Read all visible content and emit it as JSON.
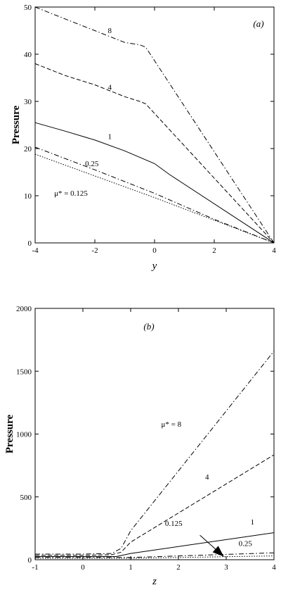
{
  "chart_data": [
    {
      "type": "line",
      "panel_label": "(a)",
      "xlabel": "y",
      "ylabel": "Pressure",
      "xlim": [
        -4,
        4
      ],
      "ylim": [
        0,
        50
      ],
      "xticks": [
        -4,
        -2,
        0,
        2,
        4
      ],
      "yticks": [
        0,
        10,
        20,
        30,
        40,
        50
      ],
      "grid": false,
      "series": [
        {
          "name": "8",
          "dash": "dashdot",
          "x": [
            -4,
            -3,
            -2,
            -1,
            -0.5,
            -0.3,
            4
          ],
          "y": [
            50,
            47.5,
            45,
            42.5,
            42,
            41.5,
            0
          ]
        },
        {
          "name": "4",
          "dash": "dashed",
          "x": [
            -4,
            -3,
            -2,
            -1,
            -0.5,
            -0.3,
            4
          ],
          "y": [
            38,
            35.5,
            33.5,
            31,
            30,
            29.5,
            0
          ]
        },
        {
          "name": "1",
          "dash": "solid",
          "x": [
            -4,
            -3,
            -2,
            -1,
            0,
            0.5,
            4
          ],
          "y": [
            25.5,
            23.7,
            21.8,
            19.5,
            16.8,
            14.5,
            0
          ]
        },
        {
          "name": "0.25",
          "dash": "dashdot",
          "x": [
            -4,
            -2,
            0,
            2,
            4
          ],
          "y": [
            20.3,
            15.5,
            10.5,
            5,
            0
          ]
        },
        {
          "name": "μ* = 0.125",
          "dash": "dotted",
          "x": [
            -4,
            -2,
            0,
            2,
            4
          ],
          "y": [
            18.8,
            14.2,
            9.6,
            4.8,
            0
          ]
        }
      ],
      "annotations": [
        {
          "text": "8",
          "x": -1.5,
          "y": 44.5
        },
        {
          "text": "4",
          "x": -1.5,
          "y": 32.5
        },
        {
          "text": "1",
          "x": -1.5,
          "y": 22
        },
        {
          "text": "0.25",
          "x": -2.1,
          "y": 16.3
        },
        {
          "text": "μ* = 0.125",
          "x": -2.8,
          "y": 10
        }
      ]
    },
    {
      "type": "line",
      "panel_label": "(b)",
      "xlabel": "z",
      "ylabel": "Pressure",
      "xlim": [
        -1,
        4
      ],
      "ylim": [
        0,
        2000
      ],
      "xticks": [
        -1,
        0,
        1,
        2,
        3,
        4
      ],
      "yticks": [
        0,
        500,
        1000,
        1500,
        2000
      ],
      "grid": false,
      "series": [
        {
          "name": "μ* = 8",
          "dash": "dashdot",
          "x": [
            -1,
            0,
            0.6,
            0.8,
            1.0,
            4
          ],
          "y": [
            45,
            45,
            50,
            90,
            230,
            1660
          ]
        },
        {
          "name": "4",
          "dash": "dashed",
          "x": [
            -1,
            0,
            0.6,
            0.8,
            1.0,
            4
          ],
          "y": [
            35,
            35,
            40,
            60,
            140,
            835
          ]
        },
        {
          "name": "1",
          "dash": "solid",
          "x": [
            -1,
            0,
            0.7,
            1.0,
            4
          ],
          "y": [
            25,
            25,
            25,
            50,
            215
          ]
        },
        {
          "name": "0.25",
          "dash": "dashdot",
          "x": [
            -1,
            0,
            1,
            4
          ],
          "y": [
            18,
            18,
            18,
            55
          ]
        },
        {
          "name": "0.125",
          "dash": "dotted",
          "x": [
            -1,
            0,
            1,
            4
          ],
          "y": [
            12,
            12,
            12,
            30
          ]
        }
      ],
      "annotations": [
        {
          "text": "μ* = 8",
          "x": 1.85,
          "y": 1060
        },
        {
          "text": "4",
          "x": 2.6,
          "y": 640
        },
        {
          "text": "1",
          "x": 3.55,
          "y": 280
        },
        {
          "text": "0.125",
          "x": 1.9,
          "y": 270
        },
        {
          "text": "0.25",
          "x": 3.4,
          "y": 110
        }
      ],
      "arrow": {
        "x1": 2.45,
        "y1": 195,
        "x2": 2.95,
        "y2": 25
      }
    }
  ]
}
